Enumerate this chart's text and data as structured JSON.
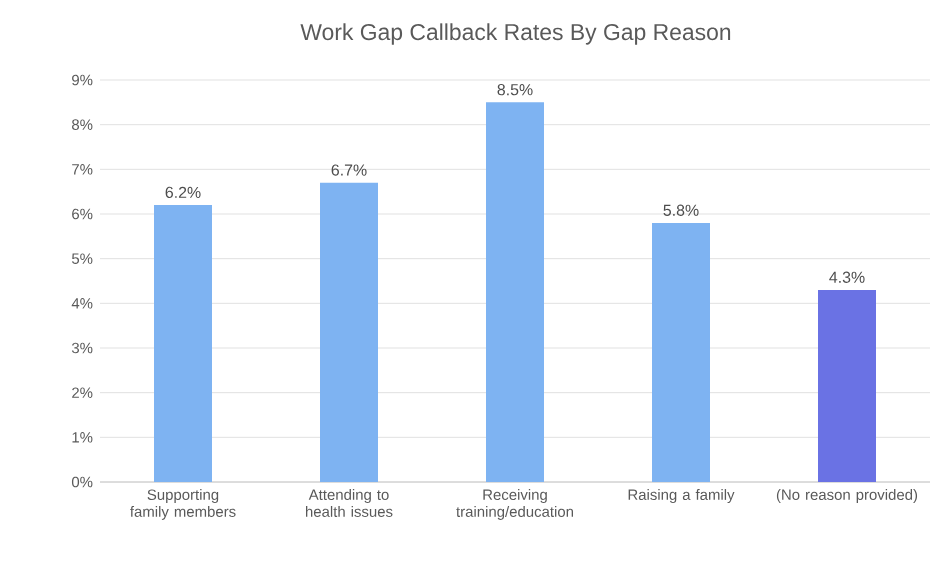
{
  "chart_data": {
    "type": "bar",
    "title": "Work Gap Callback Rates By Gap Reason",
    "categories": [
      "Supporting family members",
      "Attending to health issues",
      "Receiving training/education",
      "Raising a family",
      "(No reason provided)"
    ],
    "values": [
      6.2,
      6.7,
      8.5,
      5.8,
      4.3
    ],
    "colors": [
      "#7eb3f2",
      "#7eb3f2",
      "#7eb3f2",
      "#7eb3f2",
      "#6a72e4"
    ],
    "value_labels": [
      "6.2%",
      "6.7%",
      "8.5%",
      "5.8%",
      "4.3%"
    ],
    "ylim": [
      0,
      9
    ],
    "yticks": [
      {
        "value": 0,
        "label": "0%"
      },
      {
        "value": 1,
        "label": "1%"
      },
      {
        "value": 2,
        "label": "2%"
      },
      {
        "value": 3,
        "label": "3%"
      },
      {
        "value": 4,
        "label": "4%"
      },
      {
        "value": 5,
        "label": "5%"
      },
      {
        "value": 6,
        "label": "6%"
      },
      {
        "value": 7,
        "label": "7%"
      },
      {
        "value": 8,
        "label": "8%"
      },
      {
        "value": 9,
        "label": "9%"
      }
    ],
    "grid": "y"
  }
}
